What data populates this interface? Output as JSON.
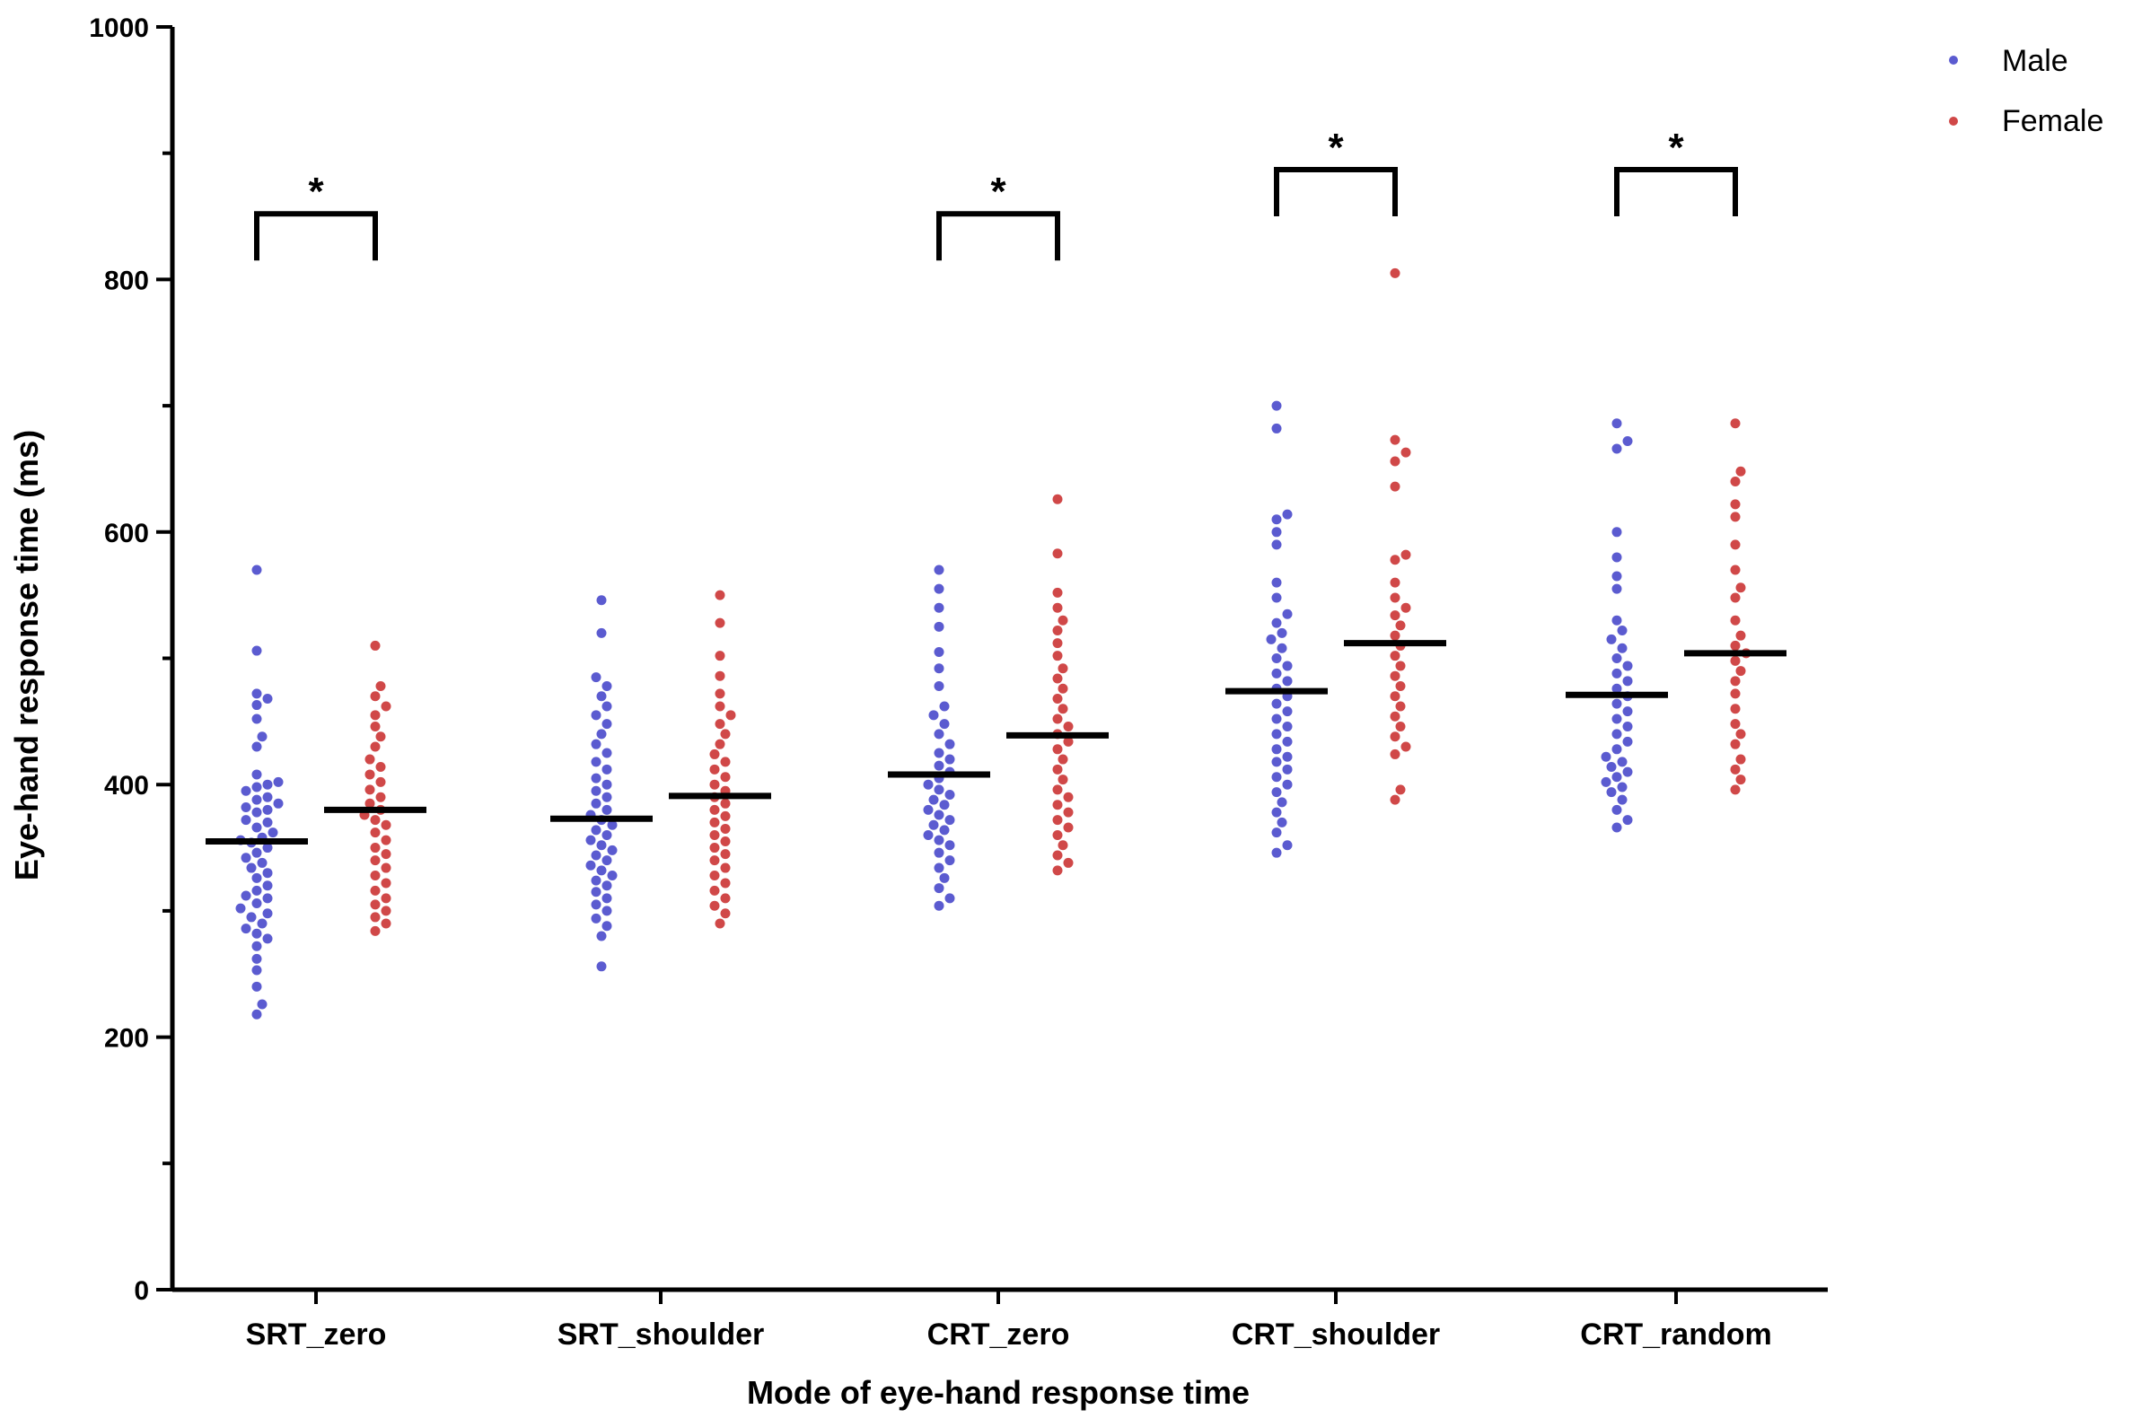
{
  "chart_data": {
    "type": "scatter",
    "subtype": "beeswarm",
    "title": "",
    "xlabel": "Mode of eye-hand response time",
    "ylabel": "Eye-hand response time (ms)",
    "ylim": [
      0,
      1000
    ],
    "yticks": [
      0,
      200,
      400,
      600,
      800,
      1000
    ],
    "categories": [
      "SRT_zero",
      "SRT_shoulder",
      "CRT_zero",
      "CRT_shoulder",
      "CRT_random"
    ],
    "legend_position": "top-right",
    "series": [
      {
        "name": "Male",
        "color": "#5b5bd0",
        "means": [
          355,
          373,
          408,
          474,
          471
        ],
        "points": [
          [
            570,
            506,
            472,
            468,
            463,
            452,
            438,
            430,
            408,
            402,
            400,
            398,
            395,
            390,
            388,
            385,
            382,
            380,
            378,
            372,
            370,
            366,
            362,
            358,
            356,
            354,
            350,
            346,
            342,
            338,
            334,
            330,
            326,
            320,
            316,
            312,
            310,
            306,
            302,
            298,
            295,
            290,
            286,
            282,
            278,
            272,
            262,
            253,
            240,
            226,
            218
          ],
          [
            546,
            520,
            485,
            478,
            470,
            462,
            455,
            448,
            440,
            432,
            425,
            418,
            412,
            405,
            400,
            395,
            390,
            385,
            380,
            376,
            372,
            368,
            364,
            360,
            356,
            352,
            348,
            344,
            340,
            336,
            332,
            328,
            324,
            320,
            315,
            310,
            305,
            300,
            294,
            288,
            280,
            256
          ],
          [
            570,
            555,
            540,
            525,
            505,
            492,
            478,
            462,
            455,
            448,
            440,
            432,
            425,
            420,
            415,
            410,
            405,
            400,
            396,
            392,
            388,
            384,
            380,
            376,
            372,
            368,
            364,
            360,
            356,
            352,
            346,
            340,
            334,
            326,
            318,
            310,
            304
          ],
          [
            700,
            682,
            614,
            610,
            600,
            590,
            560,
            548,
            535,
            528,
            520,
            515,
            508,
            500,
            494,
            488,
            482,
            476,
            470,
            464,
            458,
            452,
            446,
            440,
            434,
            428,
            422,
            418,
            412,
            406,
            400,
            394,
            386,
            378,
            370,
            362,
            352,
            346
          ],
          [
            686,
            672,
            666,
            600,
            580,
            565,
            555,
            530,
            522,
            515,
            508,
            500,
            494,
            488,
            482,
            476,
            470,
            464,
            458,
            452,
            446,
            440,
            434,
            428,
            422,
            418,
            414,
            410,
            406,
            402,
            398,
            394,
            388,
            380,
            372,
            366
          ]
        ]
      },
      {
        "name": "Female",
        "color": "#d04848",
        "means": [
          380,
          391,
          439,
          512,
          504
        ],
        "points": [
          [
            510,
            478,
            470,
            462,
            455,
            446,
            438,
            430,
            420,
            414,
            408,
            402,
            396,
            390,
            385,
            380,
            376,
            372,
            368,
            362,
            356,
            350,
            345,
            340,
            334,
            328,
            322,
            316,
            310,
            305,
            300,
            295,
            290,
            284
          ],
          [
            550,
            528,
            502,
            486,
            472,
            462,
            455,
            448,
            440,
            432,
            424,
            418,
            412,
            406,
            400,
            395,
            390,
            385,
            380,
            375,
            370,
            365,
            360,
            355,
            350,
            345,
            340,
            334,
            328,
            322,
            316,
            310,
            304,
            298,
            290
          ],
          [
            626,
            583,
            552,
            540,
            530,
            522,
            512,
            502,
            492,
            484,
            476,
            468,
            460,
            452,
            446,
            440,
            434,
            428,
            420,
            412,
            404,
            396,
            390,
            384,
            378,
            372,
            366,
            360,
            352,
            344,
            338,
            332
          ],
          [
            805,
            673,
            663,
            656,
            636,
            582,
            578,
            560,
            548,
            540,
            534,
            526,
            518,
            510,
            502,
            494,
            486,
            478,
            470,
            462,
            454,
            446,
            438,
            430,
            424,
            396,
            388
          ],
          [
            686,
            648,
            640,
            622,
            612,
            590,
            570,
            556,
            548,
            530,
            518,
            510,
            504,
            498,
            490,
            482,
            472,
            460,
            448,
            440,
            432,
            420,
            412,
            404,
            396
          ]
        ]
      }
    ],
    "significance": [
      {
        "category": "SRT_zero",
        "label": "*",
        "level": 852
      },
      {
        "category": "CRT_zero",
        "label": "*",
        "level": 852
      },
      {
        "category": "CRT_shoulder",
        "label": "*",
        "level": 887
      },
      {
        "category": "CRT_random",
        "label": "*",
        "level": 887
      }
    ]
  }
}
